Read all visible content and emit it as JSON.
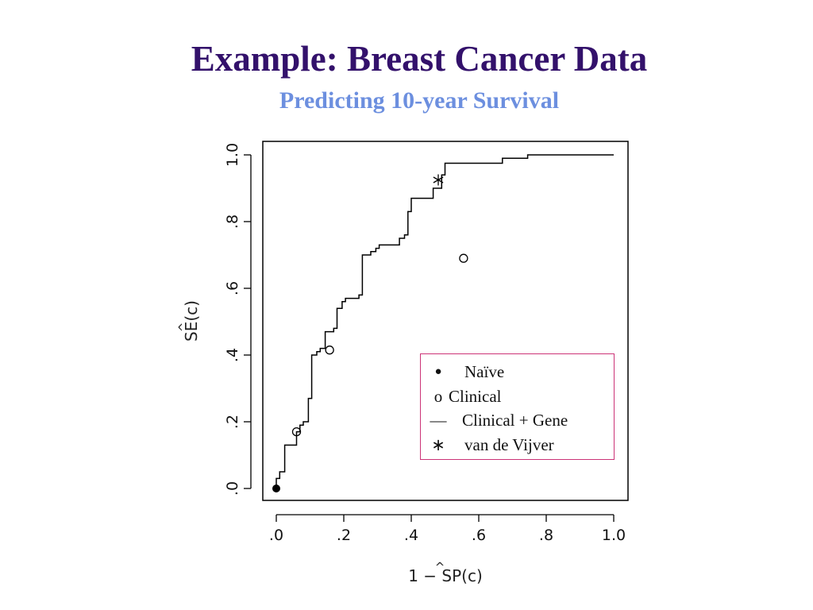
{
  "slide": {
    "title": "Example: Breast Cancer Data",
    "subtitle": "Predicting 10-year Survival"
  },
  "chart_data": {
    "type": "line",
    "xlabel": "1 − SP(c)",
    "ylabel": "SE(c)",
    "axis_hat": "^",
    "xlim": [
      0,
      1
    ],
    "ylim": [
      0,
      1
    ],
    "x_ticks": [
      0,
      0.2,
      0.4,
      0.6,
      0.8,
      1.0
    ],
    "x_tick_labels": [
      ".0",
      ".2",
      ".4",
      ".6",
      ".8",
      "1.0"
    ],
    "y_ticks": [
      0,
      0.2,
      0.4,
      0.6,
      0.8,
      1.0
    ],
    "y_tick_labels": [
      ".0",
      ".2",
      ".4",
      ".6",
      ".8",
      "1.0"
    ],
    "series": [
      {
        "name": "Clinical + Gene",
        "style": "step-line",
        "color": "#000000",
        "points": [
          [
            0,
            0
          ],
          [
            0,
            0.03
          ],
          [
            0.01,
            0.03
          ],
          [
            0.01,
            0.05
          ],
          [
            0.025,
            0.05
          ],
          [
            0.025,
            0.13
          ],
          [
            0.06,
            0.13
          ],
          [
            0.06,
            0.17
          ],
          [
            0.07,
            0.17
          ],
          [
            0.07,
            0.19
          ],
          [
            0.08,
            0.19
          ],
          [
            0.08,
            0.2
          ],
          [
            0.095,
            0.2
          ],
          [
            0.095,
            0.27
          ],
          [
            0.105,
            0.27
          ],
          [
            0.105,
            0.4
          ],
          [
            0.12,
            0.4
          ],
          [
            0.12,
            0.41
          ],
          [
            0.13,
            0.41
          ],
          [
            0.13,
            0.42
          ],
          [
            0.145,
            0.42
          ],
          [
            0.145,
            0.47
          ],
          [
            0.17,
            0.47
          ],
          [
            0.17,
            0.48
          ],
          [
            0.18,
            0.48
          ],
          [
            0.18,
            0.54
          ],
          [
            0.195,
            0.54
          ],
          [
            0.195,
            0.56
          ],
          [
            0.205,
            0.56
          ],
          [
            0.205,
            0.57
          ],
          [
            0.245,
            0.57
          ],
          [
            0.245,
            0.58
          ],
          [
            0.255,
            0.58
          ],
          [
            0.255,
            0.7
          ],
          [
            0.28,
            0.7
          ],
          [
            0.28,
            0.71
          ],
          [
            0.295,
            0.71
          ],
          [
            0.295,
            0.72
          ],
          [
            0.305,
            0.72
          ],
          [
            0.305,
            0.73
          ],
          [
            0.365,
            0.73
          ],
          [
            0.365,
            0.75
          ],
          [
            0.38,
            0.75
          ],
          [
            0.38,
            0.76
          ],
          [
            0.39,
            0.76
          ],
          [
            0.39,
            0.83
          ],
          [
            0.4,
            0.83
          ],
          [
            0.4,
            0.87
          ],
          [
            0.465,
            0.87
          ],
          [
            0.465,
            0.9
          ],
          [
            0.49,
            0.9
          ],
          [
            0.49,
            0.94
          ],
          [
            0.5,
            0.94
          ],
          [
            0.5,
            0.975
          ],
          [
            0.67,
            0.975
          ],
          [
            0.67,
            0.99
          ],
          [
            0.745,
            0.99
          ],
          [
            0.745,
            1.0
          ],
          [
            1.0,
            1.0
          ]
        ]
      }
    ],
    "markers": [
      {
        "name": "Naïve",
        "symbol": "filled-circle",
        "points": [
          [
            0,
            0
          ]
        ]
      },
      {
        "name": "Clinical",
        "symbol": "open-circle",
        "points": [
          [
            0.06,
            0.17
          ],
          [
            0.158,
            0.415
          ],
          [
            0.555,
            0.69
          ]
        ]
      },
      {
        "name": "van de Vijver",
        "symbol": "asterisk",
        "points": [
          [
            0.48,
            0.925
          ]
        ]
      }
    ],
    "legend": {
      "placement": "bottom-right",
      "border_color": "#cc3377",
      "entries": [
        {
          "symbol": "●",
          "label": "Naïve"
        },
        {
          "symbol": "o",
          "label": "Clinical"
        },
        {
          "symbol": "—",
          "label": "Clinical + Gene"
        },
        {
          "symbol": "∗",
          "label": "van de Vijver"
        }
      ]
    }
  }
}
